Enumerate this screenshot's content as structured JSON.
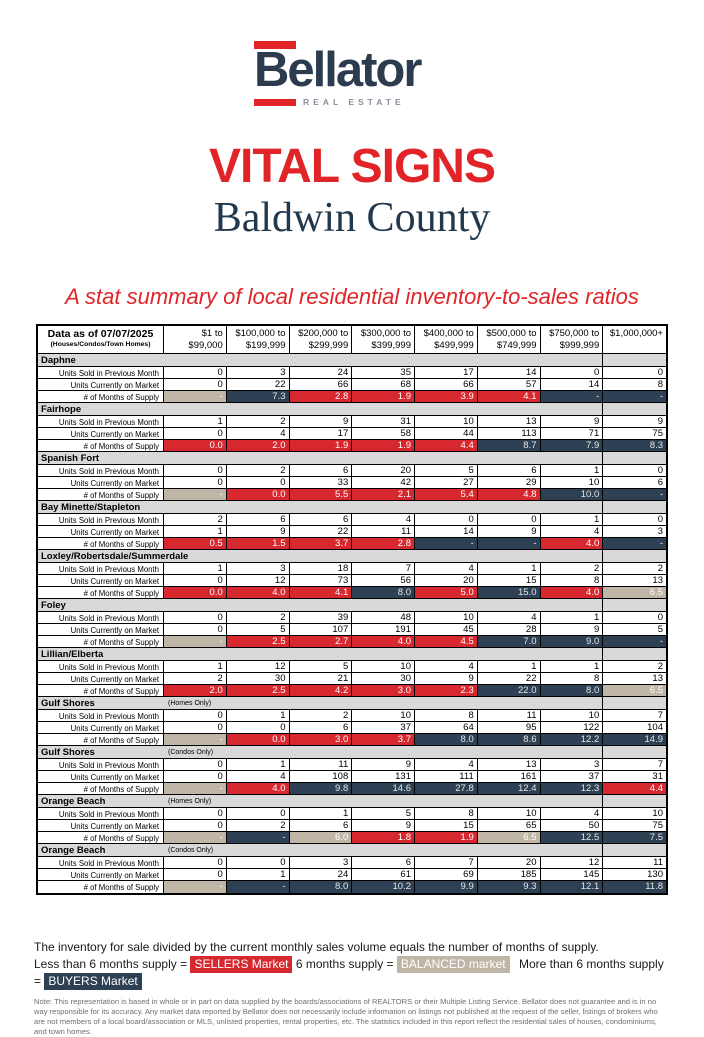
{
  "logo": {
    "wordmark": "Bellator",
    "tagline": "REAL ESTATE"
  },
  "title": "VITAL SIGNS",
  "subtitle": "Baldwin County",
  "tagline": "A stat summary of local residential inventory-to-sales ratios",
  "colors": {
    "red": "#D7282F",
    "navy": "#2E4154",
    "tan": "#BFB6A7",
    "section_gray": "#D9D9D9",
    "brand_red": "#E02428",
    "brand_navy": "#2D3B4E"
  },
  "table": {
    "header": {
      "corner_line1": "Data as of 07/07/2025",
      "corner_line2": "(Houses/Condos/Town Homes)",
      "columns": [
        {
          "l1": "$1 to",
          "l2": "$99,000"
        },
        {
          "l1": "$100,000 to",
          "l2": "$199,999"
        },
        {
          "l1": "$200,000 to",
          "l2": "$299,999"
        },
        {
          "l1": "$300,000 to",
          "l2": "$399,999"
        },
        {
          "l1": "$400,000 to",
          "l2": "$499,999"
        },
        {
          "l1": "$500,000 to",
          "l2": "$749,999"
        },
        {
          "l1": "$750,000 to",
          "l2": "$999,999"
        },
        {
          "l1": "$1,000,000+",
          "l2": ""
        }
      ]
    },
    "row_labels": {
      "sold": "Units Sold in Previous Month",
      "market": "Units Currently on Market",
      "supply": "# of Months of Supply"
    },
    "sections": [
      {
        "name": "Daphne",
        "sub": "",
        "sold": [
          "0",
          "3",
          "24",
          "35",
          "17",
          "14",
          "0",
          "0"
        ],
        "market": [
          "0",
          "22",
          "66",
          "68",
          "66",
          "57",
          "14",
          "8"
        ],
        "supply": [
          {
            "v": "-",
            "c": "tan"
          },
          {
            "v": "7.3",
            "c": "navy"
          },
          {
            "v": "2.8",
            "c": "red"
          },
          {
            "v": "1.9",
            "c": "red"
          },
          {
            "v": "3.9",
            "c": "red"
          },
          {
            "v": "4.1",
            "c": "red"
          },
          {
            "v": "-",
            "c": "navy"
          },
          {
            "v": "-",
            "c": "navy"
          }
        ]
      },
      {
        "name": "Fairhope",
        "sub": "",
        "sold": [
          "1",
          "2",
          "9",
          "31",
          "10",
          "13",
          "9",
          "9"
        ],
        "market": [
          "0",
          "4",
          "17",
          "58",
          "44",
          "113",
          "71",
          "75"
        ],
        "supply": [
          {
            "v": "0.0",
            "c": "red"
          },
          {
            "v": "2.0",
            "c": "red"
          },
          {
            "v": "1.9",
            "c": "red"
          },
          {
            "v": "1.9",
            "c": "red"
          },
          {
            "v": "4.4",
            "c": "red"
          },
          {
            "v": "8.7",
            "c": "navy"
          },
          {
            "v": "7.9",
            "c": "navy"
          },
          {
            "v": "8.3",
            "c": "navy"
          }
        ]
      },
      {
        "name": "Spanish Fort",
        "sub": "",
        "sold": [
          "0",
          "2",
          "6",
          "20",
          "5",
          "6",
          "1",
          "0"
        ],
        "market": [
          "0",
          "0",
          "33",
          "42",
          "27",
          "29",
          "10",
          "6"
        ],
        "supply": [
          {
            "v": "-",
            "c": "tan"
          },
          {
            "v": "0.0",
            "c": "red"
          },
          {
            "v": "5.5",
            "c": "red"
          },
          {
            "v": "2.1",
            "c": "red"
          },
          {
            "v": "5.4",
            "c": "red"
          },
          {
            "v": "4.8",
            "c": "red"
          },
          {
            "v": "10.0",
            "c": "navy"
          },
          {
            "v": "-",
            "c": "navy"
          }
        ]
      },
      {
        "name": "Bay Minette/Stapleton",
        "sub": "",
        "sold": [
          "2",
          "6",
          "6",
          "4",
          "0",
          "0",
          "1",
          "0"
        ],
        "market": [
          "1",
          "9",
          "22",
          "11",
          "14",
          "9",
          "4",
          "3"
        ],
        "supply": [
          {
            "v": "0.5",
            "c": "red"
          },
          {
            "v": "1.5",
            "c": "red"
          },
          {
            "v": "3.7",
            "c": "red"
          },
          {
            "v": "2.8",
            "c": "red"
          },
          {
            "v": "-",
            "c": "navy"
          },
          {
            "v": "-",
            "c": "navy"
          },
          {
            "v": "4.0",
            "c": "red"
          },
          {
            "v": "-",
            "c": "navy"
          }
        ]
      },
      {
        "name": "Loxley/Robertsdale/Summerdale",
        "sub": "",
        "sold": [
          "1",
          "3",
          "18",
          "7",
          "4",
          "1",
          "2",
          "2"
        ],
        "market": [
          "0",
          "12",
          "73",
          "56",
          "20",
          "15",
          "8",
          "13"
        ],
        "supply": [
          {
            "v": "0.0",
            "c": "red"
          },
          {
            "v": "4.0",
            "c": "red"
          },
          {
            "v": "4.1",
            "c": "red"
          },
          {
            "v": "8.0",
            "c": "navy"
          },
          {
            "v": "5.0",
            "c": "red"
          },
          {
            "v": "15.0",
            "c": "navy"
          },
          {
            "v": "4.0",
            "c": "red"
          },
          {
            "v": "6.5",
            "c": "tan"
          }
        ]
      },
      {
        "name": "Foley",
        "sub": "",
        "sold": [
          "0",
          "2",
          "39",
          "48",
          "10",
          "4",
          "1",
          "0"
        ],
        "market": [
          "0",
          "5",
          "107",
          "191",
          "45",
          "28",
          "9",
          "5"
        ],
        "supply": [
          {
            "v": "-",
            "c": "tan"
          },
          {
            "v": "2.5",
            "c": "red"
          },
          {
            "v": "2.7",
            "c": "red"
          },
          {
            "v": "4.0",
            "c": "red"
          },
          {
            "v": "4.5",
            "c": "red"
          },
          {
            "v": "7.0",
            "c": "navy"
          },
          {
            "v": "9.0",
            "c": "navy"
          },
          {
            "v": "-",
            "c": "navy"
          }
        ]
      },
      {
        "name": "Lillian/Elberta",
        "sub": "",
        "sold": [
          "1",
          "12",
          "5",
          "10",
          "4",
          "1",
          "1",
          "2"
        ],
        "market": [
          "2",
          "30",
          "21",
          "30",
          "9",
          "22",
          "8",
          "13"
        ],
        "supply": [
          {
            "v": "2.0",
            "c": "red"
          },
          {
            "v": "2.5",
            "c": "red"
          },
          {
            "v": "4.2",
            "c": "red"
          },
          {
            "v": "3.0",
            "c": "red"
          },
          {
            "v": "2.3",
            "c": "red"
          },
          {
            "v": "22.0",
            "c": "navy"
          },
          {
            "v": "8.0",
            "c": "navy"
          },
          {
            "v": "6.5",
            "c": "tan"
          }
        ]
      },
      {
        "name": "Gulf Shores",
        "sub": "(Homes Only)",
        "sold": [
          "0",
          "1",
          "2",
          "10",
          "8",
          "11",
          "10",
          "7"
        ],
        "market": [
          "0",
          "0",
          "6",
          "37",
          "64",
          "95",
          "122",
          "104"
        ],
        "supply": [
          {
            "v": "-",
            "c": "tan"
          },
          {
            "v": "0.0",
            "c": "red"
          },
          {
            "v": "3.0",
            "c": "red"
          },
          {
            "v": "3.7",
            "c": "red"
          },
          {
            "v": "8.0",
            "c": "navy"
          },
          {
            "v": "8.6",
            "c": "navy"
          },
          {
            "v": "12.2",
            "c": "navy"
          },
          {
            "v": "14.9",
            "c": "navy"
          }
        ]
      },
      {
        "name": "Gulf Shores",
        "sub": "(Condos Only)",
        "sold": [
          "0",
          "1",
          "11",
          "9",
          "4",
          "13",
          "3",
          "7"
        ],
        "market": [
          "0",
          "4",
          "108",
          "131",
          "111",
          "161",
          "37",
          "31"
        ],
        "supply": [
          {
            "v": "-",
            "c": "tan"
          },
          {
            "v": "4.0",
            "c": "red"
          },
          {
            "v": "9.8",
            "c": "navy"
          },
          {
            "v": "14.6",
            "c": "navy"
          },
          {
            "v": "27.8",
            "c": "navy"
          },
          {
            "v": "12.4",
            "c": "navy"
          },
          {
            "v": "12.3",
            "c": "navy"
          },
          {
            "v": "4.4",
            "c": "red"
          }
        ]
      },
      {
        "name": "Orange Beach",
        "sub": "(Homes Only)",
        "sold": [
          "0",
          "0",
          "1",
          "5",
          "8",
          "10",
          "4",
          "10"
        ],
        "market": [
          "0",
          "2",
          "6",
          "9",
          "15",
          "65",
          "50",
          "75"
        ],
        "supply": [
          {
            "v": "-",
            "c": "tan"
          },
          {
            "v": "-",
            "c": "navy"
          },
          {
            "v": "6.0",
            "c": "tan"
          },
          {
            "v": "1.8",
            "c": "red"
          },
          {
            "v": "1.9",
            "c": "red"
          },
          {
            "v": "6.5",
            "c": "tan"
          },
          {
            "v": "12.5",
            "c": "navy"
          },
          {
            "v": "7.5",
            "c": "navy"
          }
        ]
      },
      {
        "name": "Orange Beach",
        "sub": "(Condos Only)",
        "sold": [
          "0",
          "0",
          "3",
          "6",
          "7",
          "20",
          "12",
          "11"
        ],
        "market": [
          "0",
          "1",
          "24",
          "61",
          "69",
          "185",
          "145",
          "130"
        ],
        "supply": [
          {
            "v": "-",
            "c": "tan"
          },
          {
            "v": "-",
            "c": "navy"
          },
          {
            "v": "8.0",
            "c": "navy"
          },
          {
            "v": "10.2",
            "c": "navy"
          },
          {
            "v": "9.9",
            "c": "navy"
          },
          {
            "v": "9.3",
            "c": "navy"
          },
          {
            "v": "12.1",
            "c": "navy"
          },
          {
            "v": "11.8",
            "c": "navy"
          }
        ]
      }
    ]
  },
  "legend": {
    "line1": "The inventory for sale divided by the current monthly sales volume equals the number of months of supply.",
    "less_label": "Less than 6 months supply =",
    "sellers_chip": "SELLERS Market",
    "balanced_label": "6 months supply =",
    "balanced_chip": "BALANCED market",
    "more_label": "More than 6 months supply =",
    "buyers_chip": "BUYERS Market"
  },
  "note": "Note: This representation is based in whole or in part on data supplied by the boards/associations of REALTORS or their Multiple Listing Service. Bellator does not guarantee and is in no way responsible for its accuracy. Any market data reported by Bellator does not necessarily include information on listings not published at the request of the seller, listings of brokers who are not members of a local board/association or MLS, unlisted properties, rental properties, etc. The statistics included in this report reflect the residential sales of houses, condominiums, and town homes."
}
